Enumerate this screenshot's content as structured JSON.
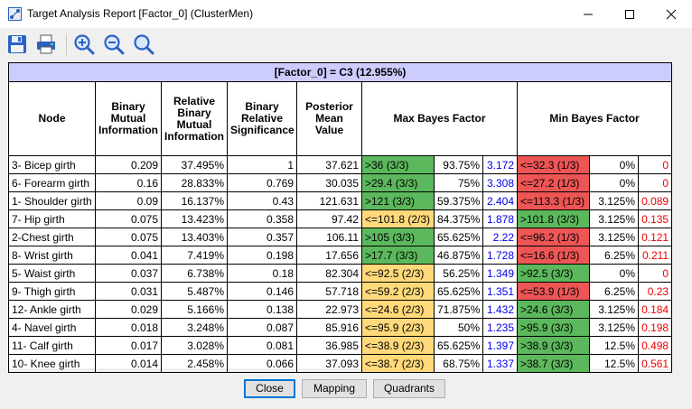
{
  "window": {
    "title": "Target Analysis Report [Factor_0] (ClusterMen)",
    "controls": [
      "minimize-icon",
      "maximize-icon",
      "close-icon"
    ]
  },
  "toolbar": {
    "buttons": [
      "save-icon",
      "print-icon",
      "zoom-in-icon",
      "zoom-out-icon",
      "zoom-reset-icon"
    ]
  },
  "table": {
    "caption": "[Factor_0] = C3 (12.955%)",
    "headers": {
      "node": "Node",
      "bmi": "Binary Mutual Information",
      "rbmi": "Relative Binary Mutual Information",
      "brs": "Binary Relative Significance",
      "pmv": "Posterior Mean Value",
      "max_bf": "Max Bayes Factor",
      "min_bf": "Min Bayes Factor"
    },
    "colors": {
      "green": "#5cb85c",
      "red": "#ee5555",
      "yellow": "#ffd97a",
      "blue_text": "#0000ee",
      "red_text": "#ee0000"
    },
    "rows": [
      {
        "node": "3- Bicep girth",
        "bmi": "0.209",
        "rbmi": "37.495%",
        "brs": "1",
        "pmv": "37.621",
        "max_text": ">36 (3/3)",
        "max_color": "green",
        "max_pct": "93.75%",
        "max_val": "3.172",
        "min_text": "<=32.3 (1/3)",
        "min_color": "redbg",
        "min_pct": "0%",
        "min_val": "0"
      },
      {
        "node": "6- Forearm girth",
        "bmi": "0.16",
        "rbmi": "28.833%",
        "brs": "0.769",
        "pmv": "30.035",
        "max_text": ">29.4 (3/3)",
        "max_color": "green",
        "max_pct": "75%",
        "max_val": "3.308",
        "min_text": "<=27.2 (1/3)",
        "min_color": "redbg",
        "min_pct": "0%",
        "min_val": "0"
      },
      {
        "node": "1- Shoulder girth",
        "bmi": "0.09",
        "rbmi": "16.137%",
        "brs": "0.43",
        "pmv": "121.631",
        "max_text": ">121 (3/3)",
        "max_color": "green",
        "max_pct": "59.375%",
        "max_val": "2.404",
        "min_text": "<=113.3 (1/3)",
        "min_color": "redbg",
        "min_pct": "3.125%",
        "min_val": "0.089"
      },
      {
        "node": "7- Hip girth",
        "bmi": "0.075",
        "rbmi": "13.423%",
        "brs": "0.358",
        "pmv": "97.42",
        "max_text": "<=101.8 (2/3)",
        "max_color": "yellow",
        "max_pct": "84.375%",
        "max_val": "1.878",
        "min_text": ">101.8 (3/3)",
        "min_color": "green",
        "min_pct": "3.125%",
        "min_val": "0.135"
      },
      {
        "node": "2-Chest girth",
        "bmi": "0.075",
        "rbmi": "13.403%",
        "brs": "0.357",
        "pmv": "106.11",
        "max_text": ">105 (3/3)",
        "max_color": "green",
        "max_pct": "65.625%",
        "max_val": "2.22",
        "min_text": "<=96.2 (1/3)",
        "min_color": "redbg",
        "min_pct": "3.125%",
        "min_val": "0.121"
      },
      {
        "node": "8- Wrist girth",
        "bmi": "0.041",
        "rbmi": "7.419%",
        "brs": "0.198",
        "pmv": "17.656",
        "max_text": ">17.7 (3/3)",
        "max_color": "green",
        "max_pct": "46.875%",
        "max_val": "1.728",
        "min_text": "<=16.6 (1/3)",
        "min_color": "redbg",
        "min_pct": "6.25%",
        "min_val": "0.211"
      },
      {
        "node": "5- Waist girth",
        "bmi": "0.037",
        "rbmi": "6.738%",
        "brs": "0.18",
        "pmv": "82.304",
        "max_text": "<=92.5 (2/3)",
        "max_color": "yellow",
        "max_pct": "56.25%",
        "max_val": "1.349",
        "min_text": ">92.5 (3/3)",
        "min_color": "green",
        "min_pct": "0%",
        "min_val": "0"
      },
      {
        "node": "9- Thigh girth",
        "bmi": "0.031",
        "rbmi": "5.487%",
        "brs": "0.146",
        "pmv": "57.718",
        "max_text": "<=59.2 (2/3)",
        "max_color": "yellow",
        "max_pct": "65.625%",
        "max_val": "1.351",
        "min_text": "<=53.9 (1/3)",
        "min_color": "redbg",
        "min_pct": "6.25%",
        "min_val": "0.23"
      },
      {
        "node": "12- Ankle girth",
        "bmi": "0.029",
        "rbmi": "5.166%",
        "brs": "0.138",
        "pmv": "22.973",
        "max_text": "<=24.6 (2/3)",
        "max_color": "yellow",
        "max_pct": "71.875%",
        "max_val": "1.432",
        "min_text": ">24.6 (3/3)",
        "min_color": "green",
        "min_pct": "3.125%",
        "min_val": "0.184"
      },
      {
        "node": "4- Navel girth",
        "bmi": "0.018",
        "rbmi": "3.248%",
        "brs": "0.087",
        "pmv": "85.916",
        "max_text": "<=95.9 (2/3)",
        "max_color": "yellow",
        "max_pct": "50%",
        "max_val": "1.235",
        "min_text": ">95.9 (3/3)",
        "min_color": "green",
        "min_pct": "3.125%",
        "min_val": "0.198"
      },
      {
        "node": "11- Calf girth",
        "bmi": "0.017",
        "rbmi": "3.028%",
        "brs": "0.081",
        "pmv": "36.985",
        "max_text": "<=38.9 (2/3)",
        "max_color": "yellow",
        "max_pct": "65.625%",
        "max_val": "1.397",
        "min_text": ">38.9 (3/3)",
        "min_color": "green",
        "min_pct": "12.5%",
        "min_val": "0.498"
      },
      {
        "node": "10- Knee girth",
        "bmi": "0.014",
        "rbmi": "2.458%",
        "brs": "0.066",
        "pmv": "37.093",
        "max_text": "<=38.7 (2/3)",
        "max_color": "yellow",
        "max_pct": "68.75%",
        "max_val": "1.337",
        "min_text": ">38.7 (3/3)",
        "min_color": "green",
        "min_pct": "12.5%",
        "min_val": "0.561"
      }
    ]
  },
  "buttons": {
    "close": "Close",
    "mapping": "Mapping",
    "quadrants": "Quadrants"
  }
}
